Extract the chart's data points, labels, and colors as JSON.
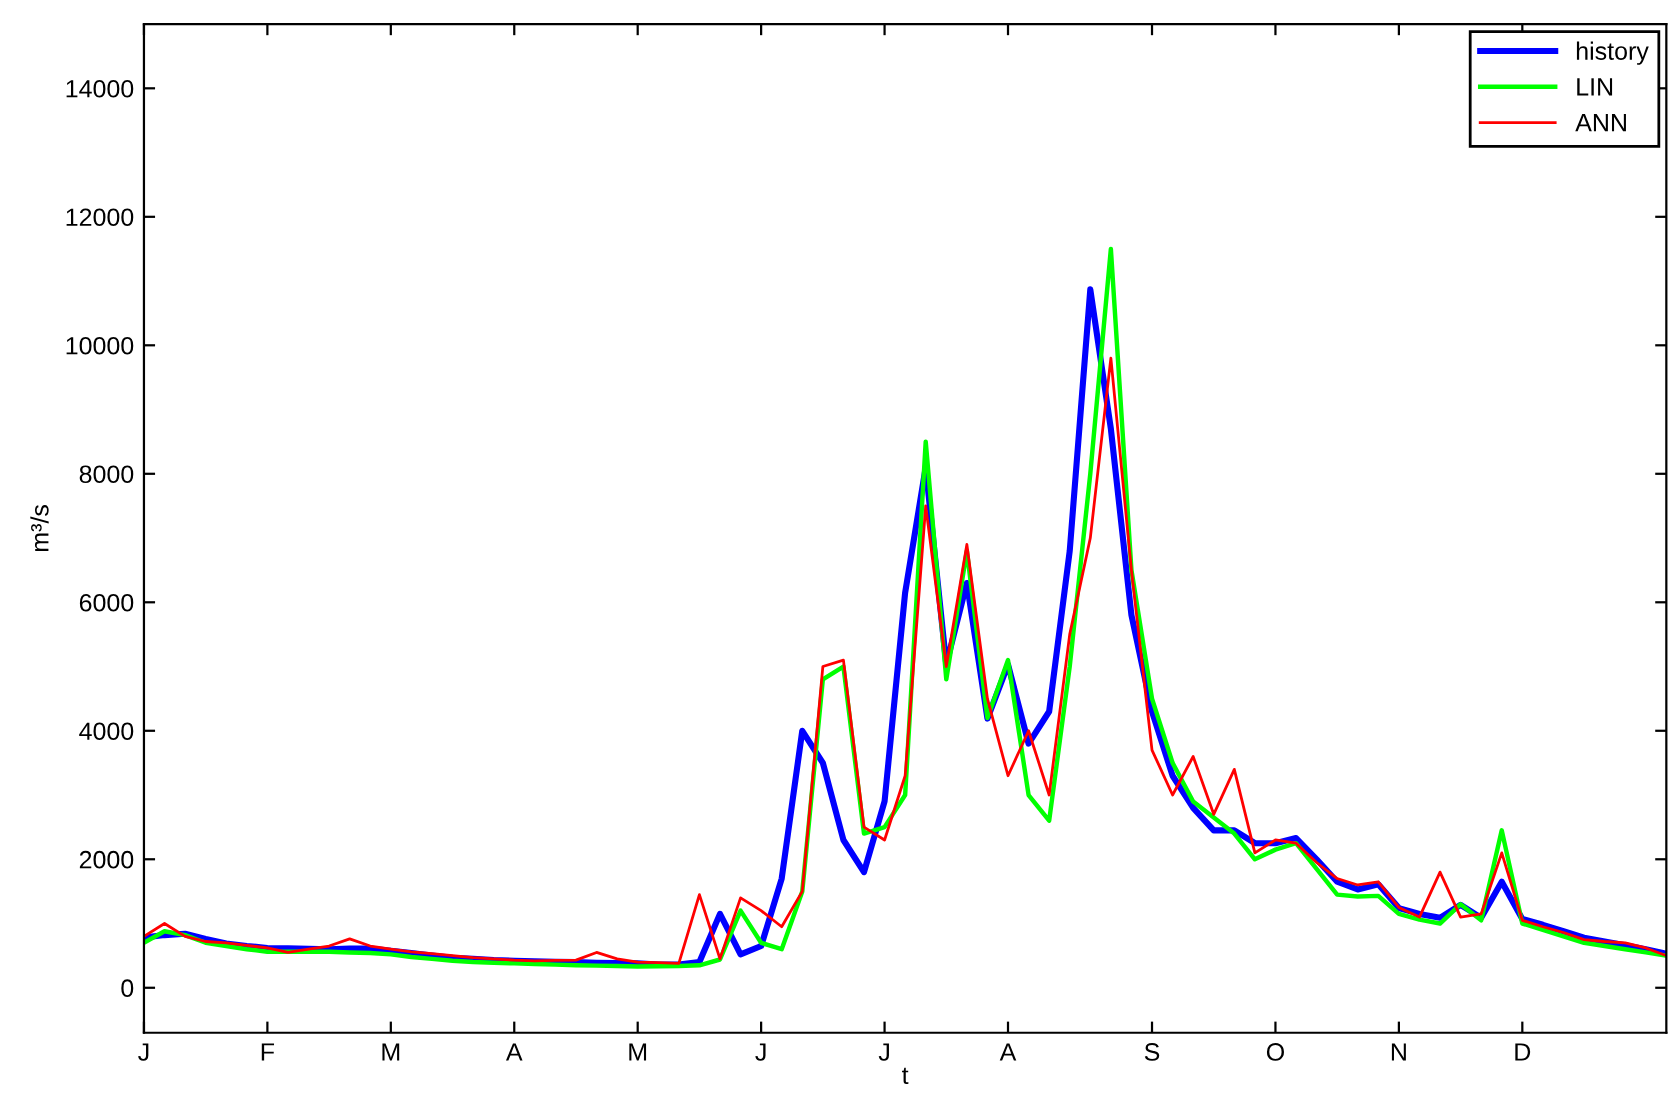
{
  "chart_data": {
    "type": "line",
    "xlabel": "t",
    "ylabel": "m³/s",
    "categories": [
      "J",
      null,
      null,
      null,
      null,
      null,
      "F",
      null,
      null,
      null,
      null,
      null,
      "M",
      null,
      null,
      null,
      null,
      null,
      "A",
      null,
      null,
      null,
      null,
      null,
      "M",
      null,
      null,
      null,
      null,
      null,
      "J",
      null,
      null,
      null,
      null,
      null,
      "J",
      null,
      null,
      null,
      null,
      null,
      "A",
      null,
      null,
      null,
      null,
      null,
      null,
      "S",
      null,
      null,
      null,
      null,
      null,
      "O",
      null,
      null,
      null,
      null,
      null,
      "N",
      null,
      null,
      null,
      null,
      null,
      "D",
      null,
      null,
      null,
      null,
      null,
      null,
      null
    ],
    "ylim": [
      -700,
      15000
    ],
    "yticks": [
      0,
      2000,
      4000,
      6000,
      8000,
      10000,
      12000,
      14000
    ],
    "grid": false,
    "legend": "top right",
    "marker": "none",
    "line_style": "solid",
    "series": [
      {
        "name": "history",
        "color": "#0000ff",
        "values": [
          780,
          820,
          840,
          760,
          690,
          650,
          620,
          615,
          605,
          600,
          610,
          610,
          575,
          540,
          500,
          465,
          450,
          430,
          420,
          410,
          405,
          400,
          390,
          385,
          380,
          360,
          360,
          400,
          1150,
          520,
          650,
          1700,
          4000,
          3500,
          2300,
          1800,
          2900,
          6150,
          8100,
          5030,
          6300,
          4190,
          5030,
          3800,
          4300,
          6800,
          10870,
          8700,
          5800,
          4300,
          3300,
          2800,
          2450,
          2450,
          2250,
          2250,
          2330,
          2000,
          1650,
          1530,
          1610,
          1240,
          1150,
          1090,
          1290,
          1090,
          1650,
          1070,
          980,
          880,
          780,
          720,
          660,
          600,
          530
        ]
      },
      {
        "name": "LIN",
        "color": "#00ff00",
        "values": [
          700,
          880,
          820,
          700,
          650,
          600,
          560,
          560,
          560,
          560,
          550,
          540,
          520,
          480,
          450,
          420,
          400,
          390,
          380,
          370,
          360,
          350,
          345,
          340,
          330,
          335,
          340,
          350,
          440,
          1200,
          700,
          600,
          1500,
          4800,
          5000,
          2400,
          2500,
          3000,
          8500,
          4800,
          6800,
          4200,
          5100,
          3000,
          2600,
          5000,
          8000,
          11500,
          6500,
          4500,
          3500,
          2900,
          2650,
          2400,
          2000,
          2150,
          2250,
          1850,
          1450,
          1420,
          1430,
          1150,
          1060,
          1000,
          1300,
          1050,
          2450,
          1000,
          900,
          800,
          700,
          650,
          600,
          550,
          500
        ]
      },
      {
        "name": "ANN",
        "color": "#ff0000",
        "values": [
          800,
          1000,
          800,
          720,
          700,
          660,
          620,
          550,
          600,
          650,
          760,
          650,
          600,
          560,
          530,
          500,
          470,
          450,
          430,
          420,
          425,
          430,
          550,
          450,
          400,
          390,
          380,
          1450,
          450,
          1400,
          1200,
          950,
          1500,
          5000,
          5100,
          2500,
          2300,
          3300,
          7500,
          5000,
          6900,
          4500,
          3300,
          4000,
          3000,
          5500,
          7000,
          9800,
          6500,
          3700,
          3000,
          3600,
          2700,
          3400,
          2100,
          2300,
          2250,
          1950,
          1700,
          1600,
          1650,
          1250,
          1100,
          1800,
          1100,
          1150,
          2100,
          1050,
          950,
          860,
          750,
          720,
          700,
          620,
          500
        ]
      }
    ]
  }
}
